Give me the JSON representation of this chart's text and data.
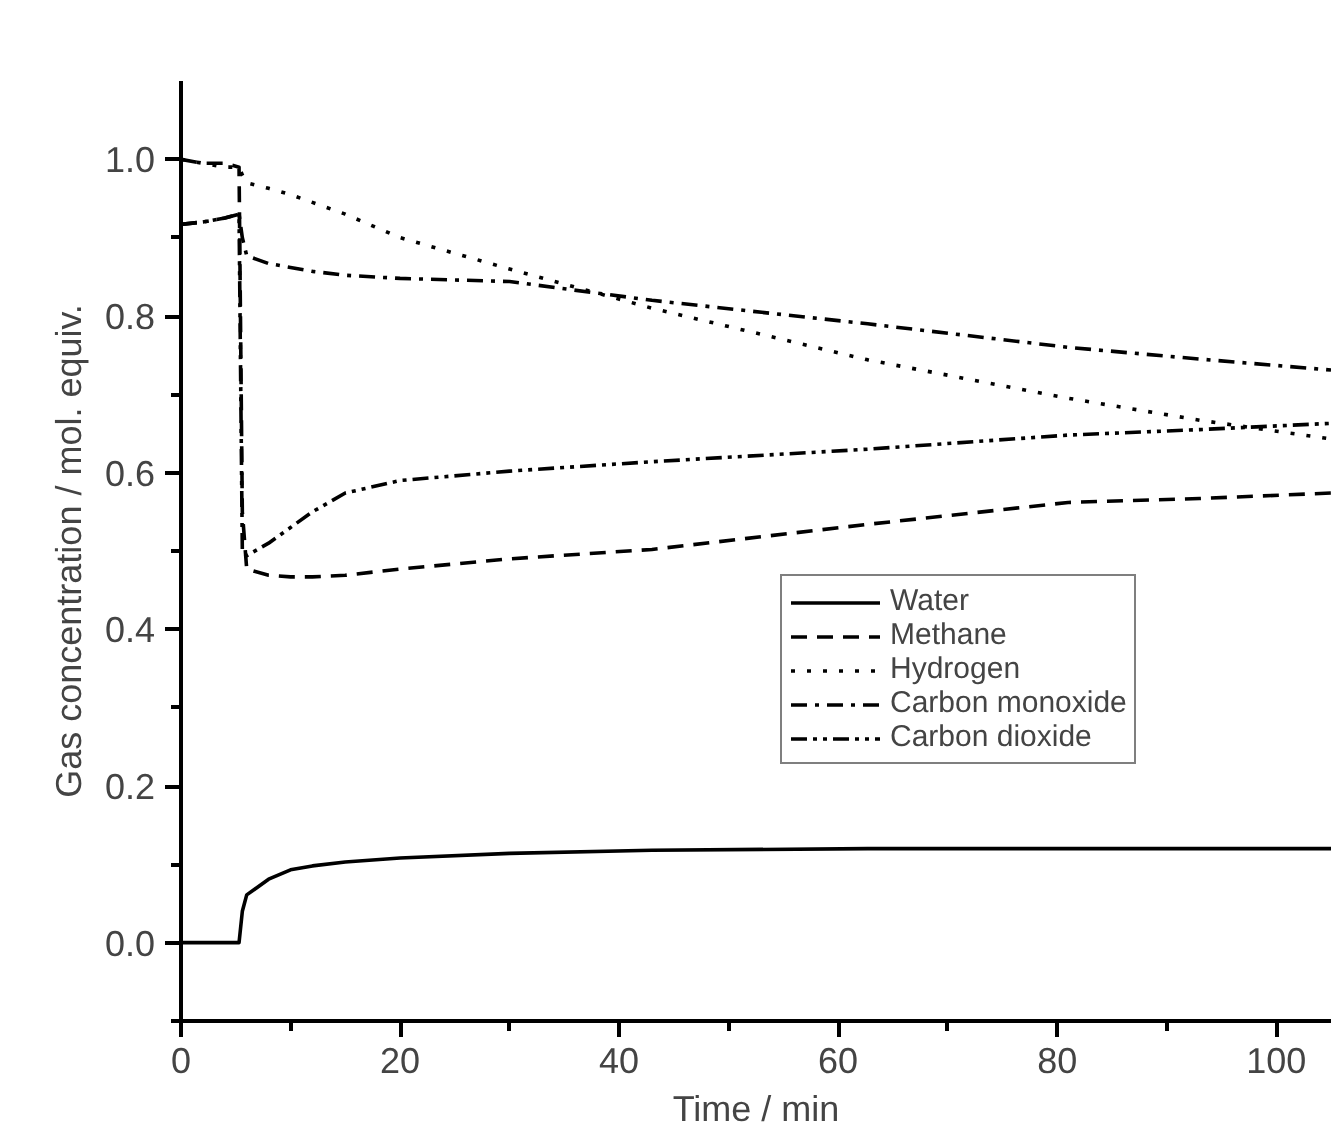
{
  "chart_data": {
    "type": "line",
    "xlabel": "Time / min",
    "ylabel": "Gas concentration / mol. equiv.",
    "xlim": [
      0,
      105
    ],
    "ylim": [
      -0.1,
      1.1
    ],
    "xticks": [
      0,
      {
        "value": 10,
        "label": null
      },
      20,
      {
        "value": 30,
        "label": null
      },
      40,
      {
        "value": 50,
        "label": null
      },
      60,
      {
        "value": 70,
        "label": null
      },
      80,
      {
        "value": 90,
        "label": null
      },
      100
    ],
    "yticks": [
      {
        "value": -0.1,
        "label": null
      },
      {
        "value": 0,
        "label": "0.0"
      },
      {
        "value": 0.1,
        "label": null
      },
      0.2,
      {
        "value": 0.3,
        "label": null
      },
      0.4,
      {
        "value": 0.5,
        "label": null
      },
      0.6,
      {
        "value": 0.7,
        "label": null
      },
      0.8,
      {
        "value": 0.9,
        "label": null
      },
      {
        "value": 1.0,
        "label": "1.0"
      }
    ],
    "grid": false,
    "legend": "right",
    "x": [
      0,
      2,
      4,
      5.3,
      5.6,
      6,
      8,
      10,
      12,
      15,
      20,
      30,
      43,
      62.7,
      81,
      93,
      105
    ],
    "series": [
      {
        "name": "Water",
        "color": "#000000",
        "line_style": "solid",
        "values": [
          0,
          0,
          0,
          0,
          0.04,
          0.061,
          0.081,
          0.093,
          0.098,
          0.103,
          0.108,
          0.114,
          0.118,
          0.12,
          0.12,
          0.12,
          0.12
        ]
      },
      {
        "name": "Methane",
        "color": "#000000",
        "line_style": "dashed",
        "values": [
          1.0,
          0.995,
          0.995,
          0.99,
          0.55,
          0.477,
          0.469,
          0.467,
          0.467,
          0.469,
          0.477,
          0.49,
          0.502,
          0.534,
          0.562,
          0.567,
          0.574
        ]
      },
      {
        "name": "Hydrogen",
        "color": "#000000",
        "line_style": "dotted",
        "values": [
          1.0,
          0.995,
          0.99,
          0.99,
          0.98,
          0.97,
          0.963,
          0.955,
          0.945,
          0.93,
          0.9,
          0.86,
          0.81,
          0.744,
          0.695,
          0.667,
          0.643
        ]
      },
      {
        "name": "Carbon monoxide",
        "color": "#000000",
        "line_style": "dashdot",
        "values": [
          0.917,
          0.92,
          0.925,
          0.93,
          0.9,
          0.877,
          0.867,
          0.862,
          0.857,
          0.852,
          0.848,
          0.844,
          0.82,
          0.79,
          0.76,
          0.745,
          0.731
        ]
      },
      {
        "name": "Carbon dioxide",
        "color": "#000000",
        "line_style": "dashdotdot",
        "values": [
          0.917,
          0.92,
          0.925,
          0.93,
          0.5,
          0.494,
          0.51,
          0.53,
          0.55,
          0.574,
          0.59,
          0.602,
          0.614,
          0.63,
          0.648,
          0.655,
          0.663
        ]
      }
    ]
  }
}
